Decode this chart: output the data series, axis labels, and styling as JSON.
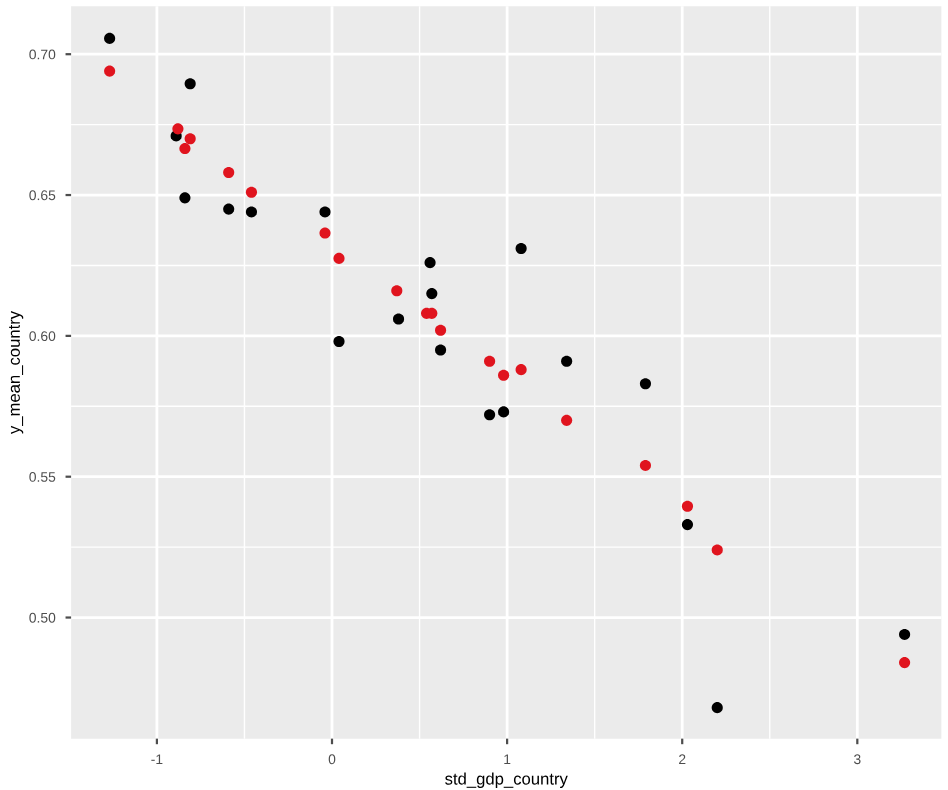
{
  "chart_data": {
    "type": "scatter",
    "xlabel": "std_gdp_country",
    "ylabel": "y_mean_country",
    "xlim": [
      -1.49,
      3.48
    ],
    "ylim": [
      0.457,
      0.717
    ],
    "xticks": [
      -1,
      0,
      1,
      2,
      3
    ],
    "yticks": [
      {
        "value": 0.5,
        "label": "0.50"
      },
      {
        "value": 0.55,
        "label": "0.55"
      },
      {
        "value": 0.6,
        "label": "0.60"
      },
      {
        "value": 0.65,
        "label": "0.65"
      },
      {
        "value": 0.7,
        "label": "0.70"
      }
    ],
    "grid": true,
    "marker": "circle",
    "series": [
      {
        "color": "#000000",
        "x": [
          -1.27,
          -0.81,
          -0.89,
          -0.84,
          -0.59,
          -0.46,
          -0.04,
          0.04,
          0.38,
          0.57,
          0.56,
          0.62,
          1.08,
          0.9,
          0.98,
          1.34,
          1.79,
          2.03,
          2.2,
          3.27
        ],
        "values": [
          0.7056,
          0.6895,
          0.671,
          0.649,
          0.645,
          0.644,
          0.644,
          0.598,
          0.606,
          0.615,
          0.626,
          0.595,
          0.631,
          0.572,
          0.573,
          0.591,
          0.583,
          0.533,
          0.468,
          0.494
        ]
      },
      {
        "color": "#e0141e",
        "x": [
          -1.27,
          -0.88,
          -0.81,
          -0.84,
          -0.59,
          -0.46,
          -0.04,
          0.04,
          0.37,
          0.54,
          0.57,
          0.62,
          0.9,
          0.98,
          1.08,
          1.34,
          1.79,
          2.03,
          2.2,
          3.27
        ],
        "values": [
          0.694,
          0.6735,
          0.67,
          0.6665,
          0.658,
          0.651,
          0.6365,
          0.6275,
          0.616,
          0.608,
          0.608,
          0.602,
          0.591,
          0.586,
          0.588,
          0.57,
          0.554,
          0.5395,
          0.524,
          0.484
        ]
      }
    ]
  }
}
